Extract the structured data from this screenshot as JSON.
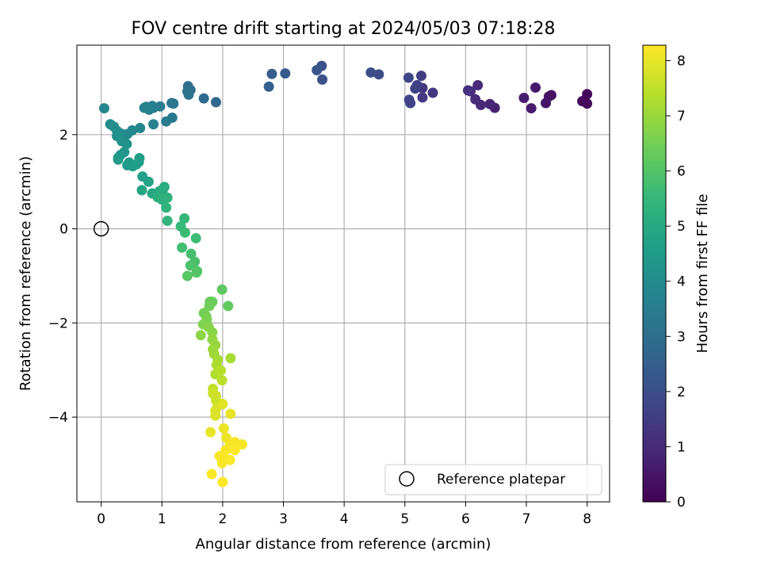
{
  "chart_data": {
    "type": "scatter",
    "title": "FOV centre drift starting at 2024/05/03 07:18:28",
    "xlabel": "Angular distance from reference (arcmin)",
    "ylabel": "Rotation from reference (arcmin)",
    "xlim": [
      -0.4,
      8.37
    ],
    "ylim": [
      -5.8,
      3.9
    ],
    "xticks": [
      0,
      1,
      2,
      3,
      4,
      5,
      6,
      7,
      8
    ],
    "yticks": [
      2,
      0,
      -2,
      -4
    ],
    "xtick_labels": [
      "0",
      "1",
      "2",
      "3",
      "4",
      "5",
      "6",
      "7",
      "8"
    ],
    "ytick_labels": [
      "2",
      "0",
      "−2",
      "−4"
    ],
    "grid": true,
    "legend": {
      "placement": "lower-right",
      "entries": [
        {
          "label": "Reference platepar",
          "marker": "open-circle"
        }
      ]
    },
    "reference_point": {
      "x": 0,
      "y": 0
    },
    "colorbar": {
      "label": "Hours from first FF file",
      "range": [
        0,
        8.28
      ],
      "ticks": [
        0,
        1,
        2,
        3,
        4,
        5,
        6,
        7,
        8
      ],
      "tick_labels": [
        "0",
        "1",
        "2",
        "3",
        "4",
        "5",
        "6",
        "7",
        "8"
      ],
      "colormap": "viridis",
      "colormap_stops": [
        "#440154",
        "#482878",
        "#3e4989",
        "#31688e",
        "#26828e",
        "#1f9e89",
        "#35b779",
        "#6ece58",
        "#b5de2b",
        "#fde725"
      ]
    },
    "series": [
      {
        "points": [
          [
            7.96,
            2.7,
            0.05
          ],
          [
            8.0,
            2.86,
            0.12
          ],
          [
            8.0,
            2.66,
            0.18
          ],
          [
            7.92,
            2.71,
            0.25
          ],
          [
            7.41,
            2.84,
            0.35
          ],
          [
            7.37,
            2.81,
            0.42
          ],
          [
            7.32,
            2.67,
            0.48
          ],
          [
            7.15,
            3.0,
            0.55
          ],
          [
            7.08,
            2.56,
            0.62
          ],
          [
            6.96,
            2.78,
            0.68
          ],
          [
            6.48,
            2.57,
            0.78
          ],
          [
            6.4,
            2.65,
            0.85
          ],
          [
            6.25,
            2.63,
            0.92
          ],
          [
            6.2,
            3.05,
            0.98
          ],
          [
            6.16,
            2.75,
            1.05
          ],
          [
            6.08,
            2.92,
            1.12
          ],
          [
            6.04,
            2.94,
            1.18
          ],
          [
            5.46,
            2.89,
            1.3
          ],
          [
            5.29,
            2.99,
            1.38
          ],
          [
            5.29,
            2.79,
            1.45
          ],
          [
            5.27,
            3.25,
            1.5
          ],
          [
            5.2,
            3.05,
            1.55
          ],
          [
            5.17,
            2.98,
            1.6
          ],
          [
            5.09,
            2.67,
            1.65
          ],
          [
            5.07,
            2.74,
            1.7
          ],
          [
            5.06,
            3.21,
            1.75
          ],
          [
            4.57,
            3.28,
            1.9
          ],
          [
            4.44,
            3.32,
            1.98
          ],
          [
            3.63,
            3.46,
            2.1
          ],
          [
            3.64,
            3.17,
            2.15
          ],
          [
            3.55,
            3.37,
            2.22
          ],
          [
            3.03,
            3.3,
            2.35
          ],
          [
            2.81,
            3.29,
            2.45
          ],
          [
            2.76,
            3.02,
            2.55
          ],
          [
            1.89,
            2.69,
            2.75
          ],
          [
            1.69,
            2.77,
            2.85
          ],
          [
            1.47,
            2.95,
            2.95
          ],
          [
            1.43,
            3.03,
            3.02
          ],
          [
            1.44,
            2.85,
            3.08
          ],
          [
            1.42,
            2.92,
            3.14
          ],
          [
            1.19,
            2.66,
            3.22
          ],
          [
            1.16,
            2.67,
            3.28
          ],
          [
            1.17,
            2.36,
            3.33
          ],
          [
            1.07,
            2.28,
            3.38
          ],
          [
            0.97,
            2.6,
            3.44
          ],
          [
            0.86,
            2.57,
            3.5
          ],
          [
            0.84,
            2.61,
            3.55
          ],
          [
            0.79,
            2.53,
            3.6
          ],
          [
            0.74,
            2.59,
            3.65
          ],
          [
            0.71,
            2.57,
            3.7
          ],
          [
            0.86,
            2.22,
            3.75
          ],
          [
            0.05,
            2.56,
            3.8
          ],
          [
            0.64,
            2.14,
            3.84
          ],
          [
            0.51,
            2.09,
            3.88
          ],
          [
            0.43,
            2.01,
            3.92
          ],
          [
            0.39,
            2.0,
            3.96
          ],
          [
            0.33,
            2.02,
            4.0
          ],
          [
            0.15,
            2.22,
            4.04
          ],
          [
            0.21,
            2.17,
            4.08
          ],
          [
            0.26,
            2.08,
            4.12
          ],
          [
            0.26,
            1.97,
            4.16
          ],
          [
            0.34,
            1.86,
            4.2
          ],
          [
            0.42,
            1.8,
            4.24
          ],
          [
            0.38,
            1.63,
            4.28
          ],
          [
            0.32,
            1.57,
            4.32
          ],
          [
            0.28,
            1.51,
            4.36
          ],
          [
            0.28,
            1.47,
            4.4
          ],
          [
            0.46,
            1.41,
            4.44
          ],
          [
            0.43,
            1.35,
            4.48
          ],
          [
            0.52,
            1.33,
            4.52
          ],
          [
            0.58,
            1.37,
            4.56
          ],
          [
            0.63,
            1.5,
            4.6
          ],
          [
            0.62,
            1.42,
            4.64
          ],
          [
            0.68,
            1.11,
            4.7
          ],
          [
            0.78,
            1.0,
            4.76
          ],
          [
            0.67,
            0.82,
            4.82
          ],
          [
            0.84,
            0.75,
            4.88
          ],
          [
            0.91,
            0.72,
            4.94
          ],
          [
            0.96,
            0.8,
            5.0
          ],
          [
            1.01,
            0.79,
            5.06
          ],
          [
            1.04,
            0.89,
            5.12
          ],
          [
            0.93,
            0.67,
            5.18
          ],
          [
            1.0,
            0.62,
            5.24
          ],
          [
            1.09,
            0.66,
            5.3
          ],
          [
            1.07,
            0.45,
            5.36
          ],
          [
            1.09,
            0.17,
            5.42
          ],
          [
            1.37,
            0.22,
            5.5
          ],
          [
            1.31,
            0.05,
            5.56
          ],
          [
            1.38,
            -0.08,
            5.62
          ],
          [
            1.56,
            -0.2,
            5.68
          ],
          [
            1.33,
            -0.4,
            5.74
          ],
          [
            1.48,
            -0.53,
            5.8
          ],
          [
            1.54,
            -0.7,
            5.86
          ],
          [
            1.47,
            -0.78,
            5.92
          ],
          [
            1.58,
            -0.9,
            5.98
          ],
          [
            1.57,
            -0.93,
            6.04
          ],
          [
            1.42,
            -1.0,
            6.1
          ],
          [
            1.99,
            -1.29,
            6.18
          ],
          [
            2.09,
            -1.64,
            6.24
          ],
          [
            1.79,
            -1.55,
            6.3
          ],
          [
            1.83,
            -1.55,
            6.36
          ],
          [
            1.78,
            -1.64,
            6.42
          ],
          [
            1.69,
            -1.79,
            6.48
          ],
          [
            1.73,
            -1.86,
            6.54
          ],
          [
            1.74,
            -1.93,
            6.6
          ],
          [
            1.68,
            -2.03,
            6.66
          ],
          [
            1.77,
            -2.09,
            6.72
          ],
          [
            1.83,
            -2.2,
            6.78
          ],
          [
            1.64,
            -2.26,
            6.84
          ],
          [
            1.83,
            -2.35,
            6.9
          ],
          [
            1.88,
            -2.47,
            6.96
          ],
          [
            1.84,
            -2.56,
            7.02
          ],
          [
            1.86,
            -2.66,
            7.08
          ],
          [
            1.92,
            -2.78,
            7.14
          ],
          [
            2.13,
            -2.75,
            7.2
          ],
          [
            1.9,
            -2.89,
            7.26
          ],
          [
            1.88,
            -3.09,
            7.32
          ],
          [
            1.97,
            -3.01,
            7.38
          ],
          [
            1.99,
            -3.22,
            7.44
          ],
          [
            1.84,
            -3.4,
            7.5
          ],
          [
            1.89,
            -3.55,
            7.56
          ],
          [
            1.89,
            -3.64,
            7.62
          ],
          [
            1.84,
            -3.5,
            7.68
          ],
          [
            1.92,
            -3.77,
            7.74
          ],
          [
            1.88,
            -3.86,
            7.8
          ],
          [
            1.88,
            -3.97,
            7.86
          ],
          [
            2.0,
            -3.72,
            7.92
          ],
          [
            2.13,
            -3.93,
            7.98
          ],
          [
            1.8,
            -4.32,
            8.02
          ],
          [
            2.02,
            -4.24,
            8.05
          ],
          [
            2.06,
            -4.44,
            8.08
          ],
          [
            2.12,
            -4.57,
            8.11
          ],
          [
            2.32,
            -4.58,
            8.14
          ],
          [
            2.2,
            -4.53,
            8.16
          ],
          [
            1.95,
            -4.83,
            8.18
          ],
          [
            1.99,
            -4.98,
            8.2
          ],
          [
            2.03,
            -4.89,
            8.22
          ],
          [
            2.12,
            -4.91,
            8.24
          ],
          [
            1.82,
            -5.21,
            8.26
          ],
          [
            2.0,
            -5.38,
            8.27
          ],
          [
            2.05,
            -4.7,
            8.22
          ],
          [
            2.2,
            -4.7,
            8.25
          ]
        ]
      }
    ]
  }
}
